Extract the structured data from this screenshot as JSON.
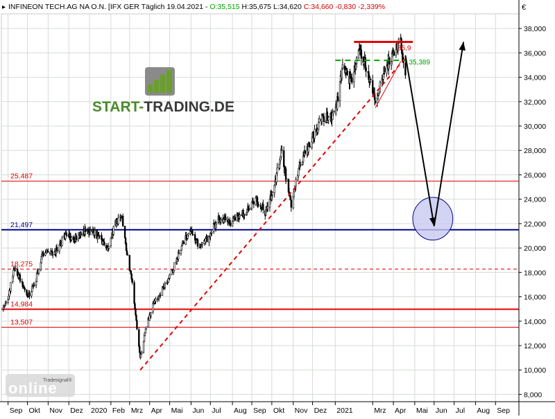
{
  "header": {
    "instrument": "INFINEON TECH.AG NA O.N. [IFX GER",
    "interval": "Täglich",
    "date": "19.04.2021",
    "open": "O:35,515",
    "high": "H:35,675",
    "low": "L:34,620",
    "close": "C:34,660",
    "change": "-0,830",
    "change_pct": "-2,339%"
  },
  "branding": {
    "logo_text_part1": "START-",
    "logo_text_part2": "TRADING.DE",
    "watermark_brand": "online",
    "watermark_sub": "Tradesignal®"
  },
  "colors": {
    "background": "#ffffff",
    "grid": "#d4dcd4",
    "candle_body": "#000000",
    "support_red": "#e00000",
    "support_navy": "#00008b",
    "trendline": "#e00000",
    "resistance_green": "#00a000",
    "forecast_arrow": "#000000",
    "target_ellipse_fill": "#c8c8f0",
    "target_ellipse_stroke": "#000080",
    "logo_green": "#4a8a2a",
    "logo_dark": "#3a3a3a",
    "close_positive": "#00a000",
    "close_negative": "#d00000"
  },
  "chart_data": {
    "type": "candlestick",
    "currency": "€",
    "y_ticks": [
      "8,000",
      "10,000",
      "12,000",
      "14,000",
      "16,000",
      "18,000",
      "20,000",
      "22,000",
      "24,000",
      "26,000",
      "28,000",
      "30,000",
      "32,000",
      "34,000",
      "36,000",
      "38,000"
    ],
    "ylim": [
      7.4,
      39.2
    ],
    "x_ticks": [
      "Sep",
      "Okt",
      "Nov",
      "Dez",
      "2020",
      "Feb",
      "Mrz",
      "Apr",
      "Mai",
      "Jun",
      "Jul",
      "Aug",
      "Sep",
      "Okt",
      "Nov",
      "Dez",
      "2021",
      "Mrz",
      "Apr",
      "Mai",
      "Jun",
      "Jul",
      "Aug",
      "Sep"
    ],
    "x_tick_dates": [
      "2019-09-02",
      "2019-10-01",
      "2019-11-01",
      "2019-12-02",
      "2020-01-02",
      "2020-02-03",
      "2020-03-02",
      "2020-04-01",
      "2020-05-01",
      "2020-06-02",
      "2020-07-01",
      "2020-08-03",
      "2020-09-01",
      "2020-10-01",
      "2020-11-02",
      "2020-12-01",
      "2021-01-04",
      "2021-03-01",
      "2021-04-01",
      "2021-05-03",
      "2021-06-01",
      "2021-07-01",
      "2021-08-02",
      "2021-09-01"
    ],
    "price_path": [
      [
        "2019-08-26",
        15.0
      ],
      [
        "2019-09-02",
        16.0
      ],
      [
        "2019-09-12",
        18.5
      ],
      [
        "2019-09-23",
        17.0
      ],
      [
        "2019-10-02",
        16.0
      ],
      [
        "2019-10-14",
        17.5
      ],
      [
        "2019-10-23",
        19.5
      ],
      [
        "2019-11-05",
        19.5
      ],
      [
        "2019-11-15",
        20.0
      ],
      [
        "2019-11-28",
        21.0
      ],
      [
        "2019-12-10",
        20.8
      ],
      [
        "2019-12-20",
        21.2
      ],
      [
        "2020-01-02",
        21.5
      ],
      [
        "2020-01-15",
        21.0
      ],
      [
        "2020-01-28",
        19.8
      ],
      [
        "2020-02-10",
        22.0
      ],
      [
        "2020-02-20",
        22.5
      ],
      [
        "2020-02-27",
        19.5
      ],
      [
        "2020-03-06",
        17.0
      ],
      [
        "2020-03-13",
        13.5
      ],
      [
        "2020-03-18",
        11.0
      ],
      [
        "2020-03-25",
        13.0
      ],
      [
        "2020-04-06",
        15.5
      ],
      [
        "2020-04-20",
        16.5
      ],
      [
        "2020-05-04",
        18.0
      ],
      [
        "2020-05-18",
        20.0
      ],
      [
        "2020-06-01",
        21.5
      ],
      [
        "2020-06-15",
        20.0
      ],
      [
        "2020-06-29",
        21.0
      ],
      [
        "2020-07-13",
        22.5
      ],
      [
        "2020-07-27",
        22.0
      ],
      [
        "2020-08-10",
        22.5
      ],
      [
        "2020-08-24",
        23.0
      ],
      [
        "2020-09-07",
        24.0
      ],
      [
        "2020-09-21",
        23.0
      ],
      [
        "2020-10-05",
        25.0
      ],
      [
        "2020-10-15",
        28.0
      ],
      [
        "2020-10-30",
        23.5
      ],
      [
        "2020-11-13",
        27.0
      ],
      [
        "2020-11-30",
        29.0
      ],
      [
        "2020-12-14",
        30.5
      ],
      [
        "2021-01-04",
        31.0
      ],
      [
        "2021-01-15",
        35.0
      ],
      [
        "2021-01-29",
        33.5
      ],
      [
        "2021-02-09",
        36.5
      ],
      [
        "2021-02-18",
        35.0
      ],
      [
        "2021-03-05",
        32.0
      ],
      [
        "2021-03-15",
        34.0
      ],
      [
        "2021-03-26",
        35.5
      ],
      [
        "2021-04-12",
        37.0
      ],
      [
        "2021-04-19",
        34.66
      ]
    ],
    "levels": [
      {
        "label": "25,487",
        "value": 25.487,
        "color": "#e00000",
        "style": "solid",
        "width": 1
      },
      {
        "label": "21,497",
        "value": 21.497,
        "color": "#00008b",
        "style": "solid",
        "width": 2
      },
      {
        "label": "18,275",
        "value": 18.275,
        "color": "#e00000",
        "style": "dashed",
        "width": 1
      },
      {
        "label": "14,984",
        "value": 14.984,
        "color": "#e00000",
        "style": "solid",
        "width": 2
      },
      {
        "label": "13,507",
        "value": 13.507,
        "color": "#e00000",
        "style": "solid",
        "width": 1
      }
    ],
    "resistance": {
      "label": "36,9",
      "value": 36.9,
      "from": "2021-02-01",
      "to": "2021-04-30"
    },
    "green_level": {
      "label": "35,389",
      "value": 35.389,
      "from": "2021-01-04",
      "to": "2021-04-20"
    },
    "trendline": {
      "from": [
        "2020-03-18",
        10.0
      ],
      "to": [
        "2021-04-19",
        35.6
      ]
    },
    "wedge_line": {
      "from": [
        "2021-03-05",
        31.5
      ],
      "to": [
        "2021-04-12",
        35.3
      ]
    },
    "forecast": [
      {
        "from": [
          "2021-04-19",
          35.8
        ],
        "to": [
          "2021-06-01",
          21.8
        ]
      },
      {
        "from": [
          "2021-06-01",
          21.8
        ],
        "to": [
          "2021-07-15",
          36.9
        ]
      }
    ],
    "target_zone": {
      "center": [
        "2021-05-30",
        22.4
      ],
      "half_width_days": 30,
      "half_height": 1.75
    },
    "xlim": [
      "2019-08-23",
      "2021-10-06"
    ],
    "grid": true
  }
}
